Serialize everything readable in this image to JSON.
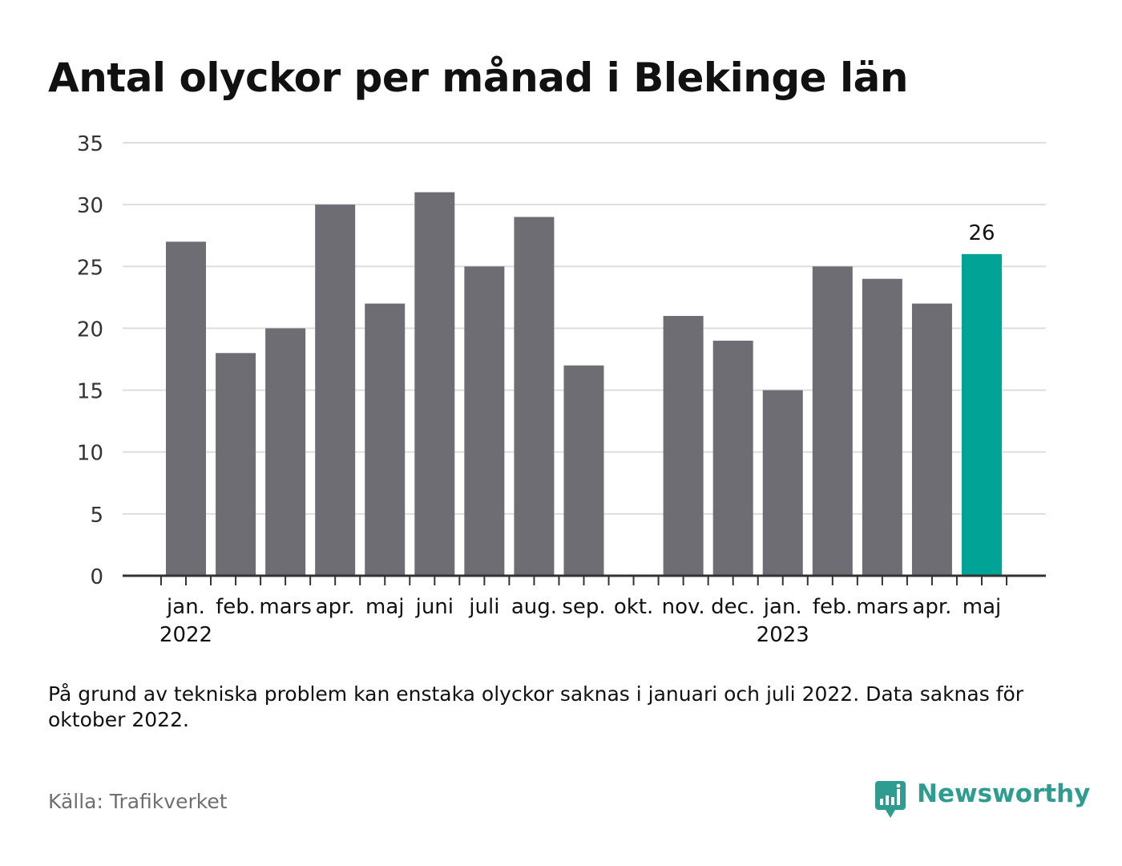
{
  "title": "Antal olyckor per månad i Blekinge län",
  "note": "På grund av tekniska problem kan enstaka olyckor saknas i januari och juli 2022. Data saknas för oktober 2022.",
  "source": "Källa: Trafikverket",
  "brand": {
    "name": "Newsworthy",
    "icon": "bar-chart-speech-bubble-icon",
    "color": "#2e9c8e"
  },
  "colors": {
    "bar": "#6e6d73",
    "highlight": "#00a396",
    "grid": "#dedede",
    "axis": "#333333"
  },
  "chart_data": {
    "type": "bar",
    "title": "Antal olyckor per månad i Blekinge län",
    "xlabel": "",
    "ylabel": "",
    "ylim": [
      0,
      35
    ],
    "yticks": [
      "0",
      "5",
      "10",
      "15",
      "20",
      "25",
      "30",
      "35"
    ],
    "grid": true,
    "legend": "none",
    "categories": [
      "jan.",
      "feb.",
      "mars",
      "apr.",
      "maj",
      "juni",
      "juli",
      "aug.",
      "sep.",
      "okt.",
      "nov.",
      "dec.",
      "jan.",
      "feb.",
      "mars",
      "apr.",
      "maj"
    ],
    "year_labels": [
      "2022",
      "",
      "",
      "",
      "",
      "",
      "",
      "",
      "",
      "",
      "",
      "",
      "2023",
      "",
      "",
      "",
      ""
    ],
    "values": [
      27,
      18,
      20,
      30,
      22,
      31,
      25,
      29,
      17,
      null,
      21,
      19,
      15,
      25,
      24,
      22,
      26
    ],
    "highlight_index": 16,
    "data_labels": [
      {
        "index": 16,
        "text": "26"
      }
    ]
  }
}
